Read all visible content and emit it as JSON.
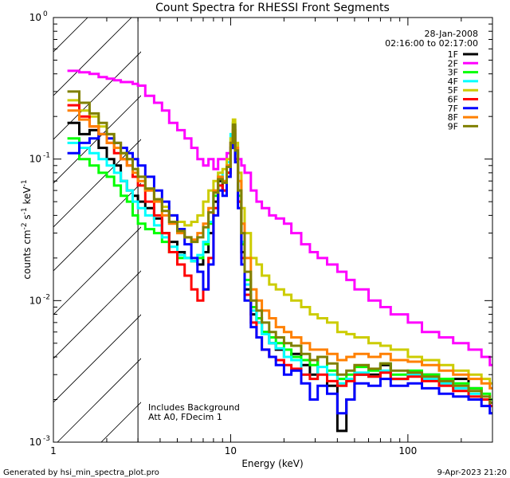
{
  "chart_data": {
    "type": "line",
    "title": "Count Spectra for RHESSI Front Segments",
    "xlabel": "Energy (keV)",
    "ylabel_base": "counts cm",
    "ylabel_exp1": "-2",
    "ylabel_mid": " s",
    "ylabel_exp2": "-1",
    "ylabel_end": " keV",
    "ylabel_exp3": "-1",
    "xscale": "log",
    "yscale": "log",
    "xlim": [
      1.0,
      300.0
    ],
    "ylim": [
      0.001,
      1.0
    ],
    "x_ticks": [
      {
        "v": 1,
        "label": "1"
      },
      {
        "v": 10,
        "label": "10"
      },
      {
        "v": 100,
        "label": "100"
      }
    ],
    "y_ticks": [
      {
        "v": 0.001,
        "base": "10",
        "exp": "-3"
      },
      {
        "v": 0.01,
        "base": "10",
        "exp": "-2"
      },
      {
        "v": 0.1,
        "base": "10",
        "exp": "-1"
      },
      {
        "v": 1,
        "base": "10",
        "exp": "0"
      }
    ],
    "date": "28-Jan-2008",
    "time_range": "02:16:00 to 02:17:00",
    "annotations": [
      "Includes Background",
      "Att A0, FDecim 1"
    ],
    "excluded_range_kev": [
      1.0,
      3.0
    ],
    "energy_bins_kev": [
      1.2,
      1.4,
      1.6,
      1.8,
      2.0,
      2.2,
      2.4,
      2.6,
      2.8,
      3.0,
      3.3,
      3.7,
      4.1,
      4.5,
      5.0,
      5.5,
      6.0,
      6.5,
      7.0,
      7.5,
      8.0,
      8.5,
      9.0,
      9.5,
      10.0,
      10.3,
      10.6,
      11.0,
      11.5,
      12.0,
      13.0,
      14.0,
      15.0,
      16.5,
      18.0,
      20.0,
      22.0,
      25.0,
      28.0,
      31.0,
      35.0,
      40.0,
      45.0,
      50.0,
      60.0,
      70.0,
      80.0,
      100.0,
      120.0,
      150.0,
      180.0,
      220.0,
      260.0,
      290.0
    ],
    "series": [
      {
        "name": "1F",
        "color": "#000000",
        "values": [
          0.18,
          0.15,
          0.16,
          0.12,
          0.1,
          0.09,
          0.07,
          0.06,
          0.055,
          0.05,
          0.045,
          0.038,
          0.03,
          0.026,
          0.022,
          0.02,
          0.019,
          0.018,
          0.022,
          0.03,
          0.05,
          0.07,
          0.06,
          0.08,
          0.12,
          0.16,
          0.1,
          0.05,
          0.022,
          0.012,
          0.008,
          0.007,
          0.006,
          0.005,
          0.0045,
          0.004,
          0.0042,
          0.0035,
          0.003,
          0.004,
          0.0025,
          0.0012,
          0.002,
          0.003,
          0.003,
          0.0035,
          0.0028,
          0.003,
          0.003,
          0.0026,
          0.0028,
          0.0024,
          0.002,
          0.002
        ]
      },
      {
        "name": "2F",
        "color": "#ff00ff",
        "values": [
          0.42,
          0.41,
          0.4,
          0.38,
          0.37,
          0.36,
          0.35,
          0.35,
          0.34,
          0.33,
          0.28,
          0.25,
          0.22,
          0.18,
          0.16,
          0.14,
          0.12,
          0.1,
          0.09,
          0.1,
          0.085,
          0.1,
          0.1,
          0.11,
          0.13,
          0.17,
          0.12,
          0.1,
          0.09,
          0.08,
          0.06,
          0.05,
          0.045,
          0.04,
          0.038,
          0.035,
          0.03,
          0.025,
          0.022,
          0.02,
          0.018,
          0.016,
          0.014,
          0.012,
          0.01,
          0.009,
          0.008,
          0.007,
          0.006,
          0.0055,
          0.005,
          0.0045,
          0.004,
          0.0035
        ]
      },
      {
        "name": "3F",
        "color": "#00ff00",
        "values": [
          0.14,
          0.1,
          0.09,
          0.08,
          0.075,
          0.065,
          0.055,
          0.05,
          0.04,
          0.035,
          0.032,
          0.03,
          0.026,
          0.022,
          0.02,
          0.02,
          0.019,
          0.02,
          0.025,
          0.035,
          0.055,
          0.075,
          0.07,
          0.09,
          0.14,
          0.18,
          0.11,
          0.055,
          0.025,
          0.014,
          0.009,
          0.0075,
          0.006,
          0.0055,
          0.005,
          0.0045,
          0.004,
          0.0038,
          0.0035,
          0.004,
          0.0032,
          0.0028,
          0.003,
          0.0034,
          0.0032,
          0.0036,
          0.003,
          0.0032,
          0.003,
          0.0028,
          0.0026,
          0.0024,
          0.0022,
          0.002
        ]
      },
      {
        "name": "4F",
        "color": "#00ffff",
        "values": [
          0.13,
          0.12,
          0.11,
          0.1,
          0.09,
          0.08,
          0.07,
          0.06,
          0.05,
          0.045,
          0.04,
          0.034,
          0.028,
          0.024,
          0.021,
          0.02,
          0.019,
          0.021,
          0.026,
          0.036,
          0.06,
          0.08,
          0.07,
          0.095,
          0.15,
          0.17,
          0.11,
          0.06,
          0.026,
          0.013,
          0.0085,
          0.007,
          0.0058,
          0.005,
          0.0046,
          0.004,
          0.0038,
          0.003,
          0.0028,
          0.0034,
          0.003,
          0.0026,
          0.0028,
          0.0031,
          0.0029,
          0.0032,
          0.0028,
          0.003,
          0.0028,
          0.0026,
          0.0024,
          0.0022,
          0.002,
          0.0018
        ]
      },
      {
        "name": "5F",
        "color": "#cccc00",
        "values": [
          0.26,
          0.22,
          0.2,
          0.17,
          0.15,
          0.13,
          0.11,
          0.1,
          0.085,
          0.075,
          0.06,
          0.052,
          0.046,
          0.04,
          0.036,
          0.034,
          0.036,
          0.04,
          0.05,
          0.06,
          0.07,
          0.08,
          0.085,
          0.1,
          0.14,
          0.19,
          0.13,
          0.08,
          0.045,
          0.03,
          0.02,
          0.018,
          0.015,
          0.013,
          0.012,
          0.011,
          0.01,
          0.009,
          0.008,
          0.0075,
          0.007,
          0.006,
          0.0058,
          0.0055,
          0.005,
          0.0048,
          0.0045,
          0.004,
          0.0038,
          0.0035,
          0.0032,
          0.003,
          0.0028,
          0.0026
        ]
      },
      {
        "name": "6F",
        "color": "#ff0000",
        "values": [
          0.24,
          0.2,
          0.17,
          0.15,
          0.13,
          0.11,
          0.1,
          0.09,
          0.075,
          0.065,
          0.05,
          0.04,
          0.03,
          0.022,
          0.018,
          0.015,
          0.012,
          0.01,
          0.012,
          0.02,
          0.045,
          0.065,
          0.06,
          0.08,
          0.13,
          0.16,
          0.1,
          0.05,
          0.02,
          0.011,
          0.007,
          0.0055,
          0.0045,
          0.004,
          0.0038,
          0.0035,
          0.0033,
          0.003,
          0.0028,
          0.003,
          0.0027,
          0.0025,
          0.0027,
          0.003,
          0.0029,
          0.0031,
          0.0028,
          0.0029,
          0.0027,
          0.0025,
          0.0023,
          0.0021,
          0.002,
          0.0018
        ]
      },
      {
        "name": "7F",
        "color": "#0000ff",
        "values": [
          0.11,
          0.13,
          0.14,
          0.15,
          0.14,
          0.13,
          0.12,
          0.11,
          0.1,
          0.09,
          0.075,
          0.06,
          0.05,
          0.04,
          0.032,
          0.025,
          0.02,
          0.016,
          0.012,
          0.018,
          0.04,
          0.06,
          0.055,
          0.075,
          0.12,
          0.15,
          0.095,
          0.045,
          0.018,
          0.01,
          0.0065,
          0.0055,
          0.0045,
          0.004,
          0.0035,
          0.003,
          0.0032,
          0.0026,
          0.002,
          0.0025,
          0.0022,
          0.0016,
          0.002,
          0.0026,
          0.0025,
          0.0028,
          0.0025,
          0.0026,
          0.0024,
          0.0022,
          0.0021,
          0.002,
          0.0018,
          0.0016
        ]
      },
      {
        "name": "8F",
        "color": "#ff8000",
        "values": [
          0.22,
          0.19,
          0.17,
          0.15,
          0.13,
          0.12,
          0.1,
          0.09,
          0.08,
          0.07,
          0.06,
          0.05,
          0.04,
          0.035,
          0.03,
          0.028,
          0.027,
          0.03,
          0.035,
          0.045,
          0.06,
          0.075,
          0.07,
          0.09,
          0.13,
          0.17,
          0.12,
          0.07,
          0.035,
          0.02,
          0.012,
          0.01,
          0.0085,
          0.0075,
          0.0065,
          0.006,
          0.0055,
          0.005,
          0.0045,
          0.0045,
          0.0042,
          0.0038,
          0.004,
          0.0042,
          0.004,
          0.0042,
          0.0038,
          0.0037,
          0.0035,
          0.0032,
          0.003,
          0.0028,
          0.0026,
          0.0024
        ]
      },
      {
        "name": "9F",
        "color": "#808000",
        "values": [
          0.3,
          0.25,
          0.21,
          0.18,
          0.15,
          0.13,
          0.11,
          0.1,
          0.085,
          0.075,
          0.062,
          0.052,
          0.043,
          0.036,
          0.031,
          0.028,
          0.026,
          0.028,
          0.033,
          0.042,
          0.058,
          0.072,
          0.068,
          0.088,
          0.13,
          0.175,
          0.115,
          0.06,
          0.03,
          0.016,
          0.01,
          0.0085,
          0.007,
          0.006,
          0.0055,
          0.005,
          0.0048,
          0.0042,
          0.0038,
          0.004,
          0.0036,
          0.003,
          0.0032,
          0.0035,
          0.0033,
          0.0036,
          0.0032,
          0.0031,
          0.0029,
          0.0027,
          0.0025,
          0.0023,
          0.0021,
          0.0019
        ]
      }
    ]
  },
  "footer": {
    "generated_by": "Generated by hsi_min_spectra_plot.pro",
    "timestamp": "9-Apr-2023 21:20"
  }
}
